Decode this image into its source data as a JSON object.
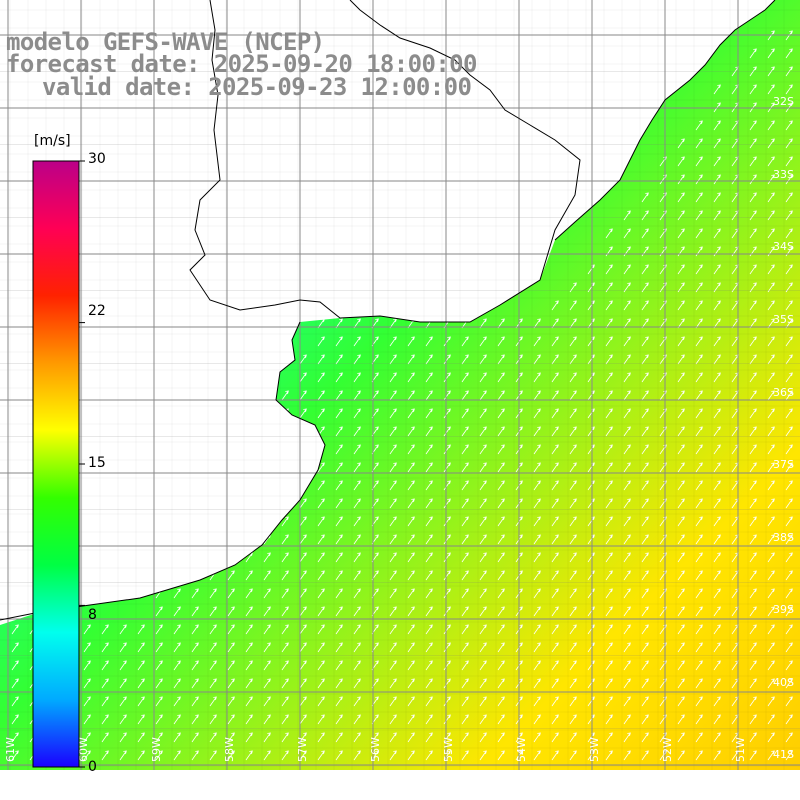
{
  "title": {
    "line1": "modelo GEFS-WAVE (NCEP)",
    "line2": "forecast date: 2025-09-20 18:00:00",
    "line3": "valid date: 2025-09-23 12:00:00"
  },
  "colorbar": {
    "unit": "[m/s]",
    "min": 0,
    "max": 30,
    "labels": [
      "30",
      "22",
      "15",
      "8",
      "0"
    ],
    "label_values": [
      30,
      22,
      15,
      8,
      0
    ],
    "stops": [
      "#1a00ff",
      "#00aaff",
      "#00ffee",
      "#00ff44",
      "#33ff00",
      "#ffff00",
      "#ff9900",
      "#ff2200",
      "#ff0055",
      "#bb0088"
    ]
  },
  "map": {
    "lat_labels": [
      "32S",
      "33S",
      "34S",
      "35S",
      "36S",
      "37S",
      "38S",
      "39S",
      "40S",
      "41S"
    ],
    "lon_labels": [
      "61W",
      "60W",
      "59W",
      "58W",
      "57W",
      "56W",
      "55W",
      "54W",
      "53W",
      "52W",
      "51W"
    ],
    "variable": "wind speed and direction",
    "ocean_colors": {
      "coast_near": "#00aaff",
      "mid": "#33ff33",
      "offshore": "#ffe600"
    },
    "land_color": "#ffffff",
    "grid_color": "#8a8a8a"
  }
}
